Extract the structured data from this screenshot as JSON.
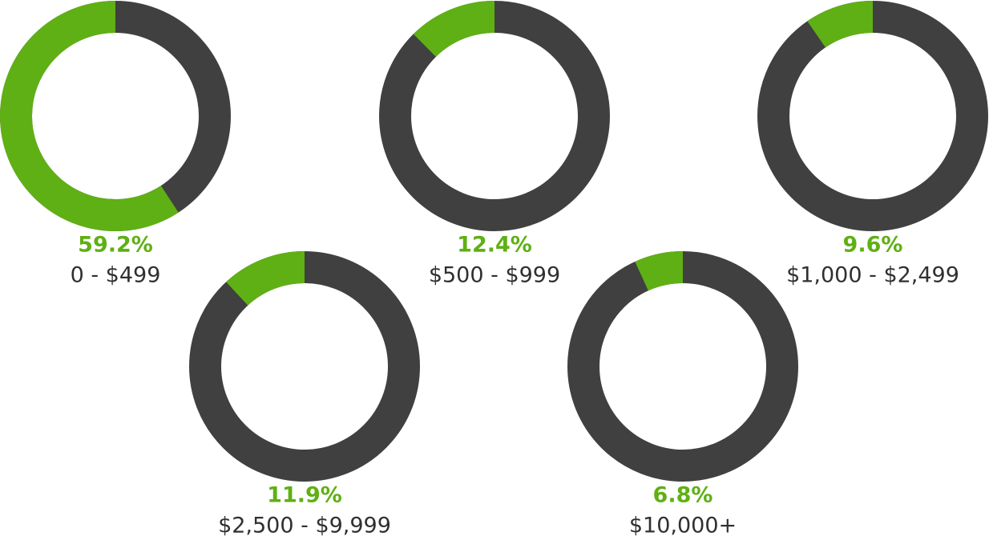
{
  "chart_data": [
    {
      "type": "donut",
      "categories": [
        "0 - $499"
      ],
      "values": [
        59.2
      ],
      "value_labels": [
        "59.2%"
      ],
      "color": "#5fb014",
      "track_color": "#404040"
    },
    {
      "type": "donut",
      "categories": [
        "$500 - $999"
      ],
      "values": [
        12.4
      ],
      "value_labels": [
        "12.4%"
      ],
      "color": "#5fb014",
      "track_color": "#404040"
    },
    {
      "type": "donut",
      "categories": [
        "$1,000 - $2,499"
      ],
      "values": [
        9.6
      ],
      "value_labels": [
        "9.6%"
      ],
      "color": "#5fb014",
      "track_color": "#404040"
    },
    {
      "type": "donut",
      "categories": [
        "$2,500 - $9,999"
      ],
      "values": [
        11.9
      ],
      "value_labels": [
        "11.9%"
      ],
      "color": "#5fb014",
      "track_color": "#404040"
    },
    {
      "type": "donut",
      "categories": [
        "$10,000+"
      ],
      "values": [
        6.8
      ],
      "value_labels": [
        "6.8%"
      ],
      "color": "#5fb014",
      "track_color": "#404040"
    }
  ]
}
